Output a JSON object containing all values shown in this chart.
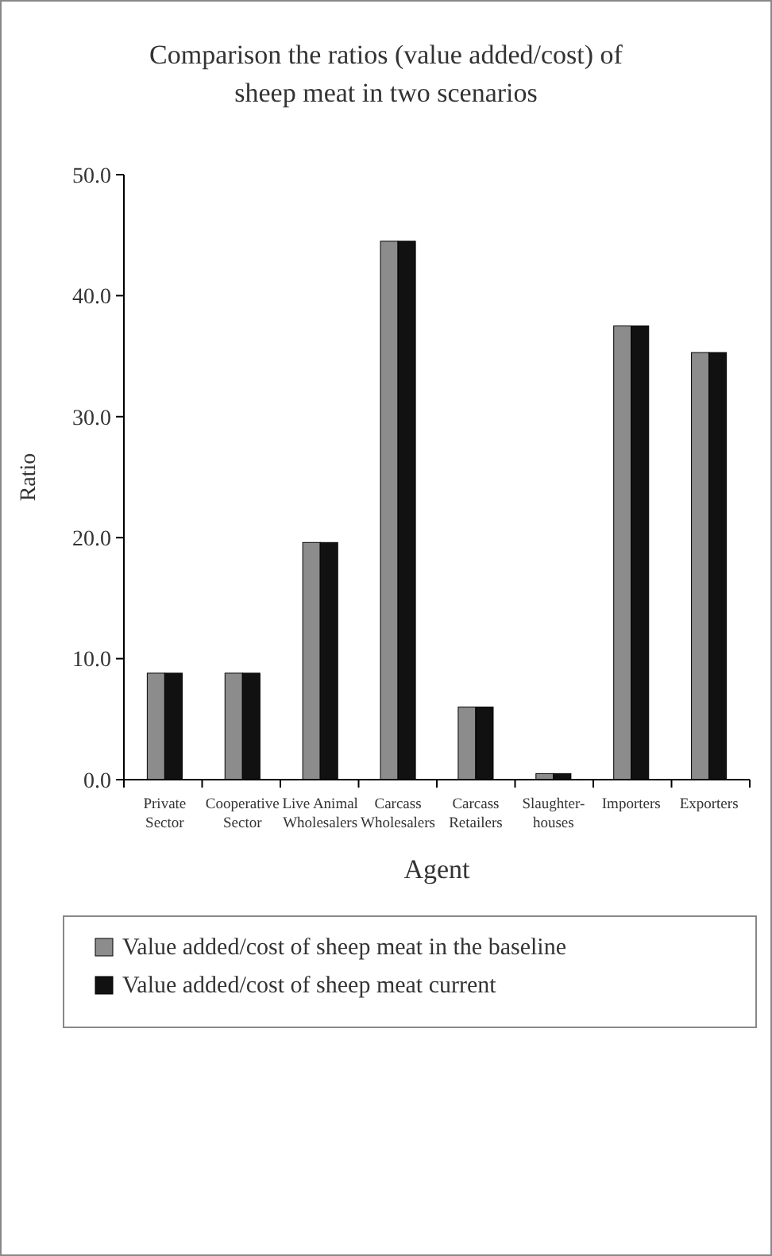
{
  "chart_data": {
    "type": "bar",
    "title": "Comparison the ratios (value added/cost) of sheep meat in two scenarios",
    "xlabel": "Agent",
    "ylabel": "Ratio",
    "categories": [
      "Private Sector",
      "Cooperative Sector",
      "Live Animal Wholesalers",
      "Carcass Wholesalers",
      "Carcass Retailers",
      "Slaughter-houses",
      "Importers",
      "Exporters"
    ],
    "series": [
      {
        "name": "Value added/cost of sheep meat in the baseline",
        "color": "#8c8c8c",
        "values": [
          8.8,
          8.8,
          19.6,
          44.5,
          6,
          0.5,
          37.5,
          35.3
        ]
      },
      {
        "name": "Value added/cost of sheep meat current",
        "color": "#111111",
        "values": [
          8.8,
          8.8,
          19.6,
          44.5,
          6,
          0.5,
          37.5,
          35.3
        ]
      }
    ],
    "ylim": [
      0,
      50
    ],
    "yticks": [
      {
        "value": 0,
        "label": "0.0"
      },
      {
        "value": 10,
        "label": "10.0"
      },
      {
        "value": 20,
        "label": "20.0"
      },
      {
        "value": 30,
        "label": "30.0"
      },
      {
        "value": 40,
        "label": "40.0"
      },
      {
        "value": 50,
        "label": "50.0"
      }
    ],
    "legend": "bottom",
    "grid": false
  }
}
